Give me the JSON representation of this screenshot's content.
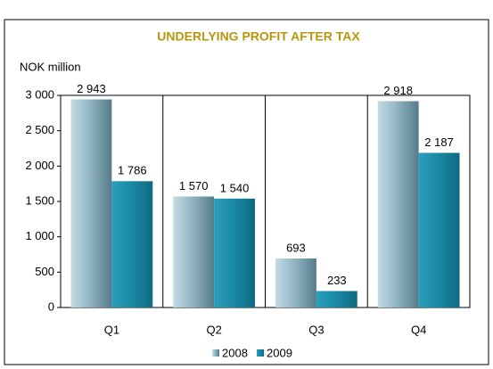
{
  "chart_data": {
    "type": "bar",
    "title": "UNDERLYING PROFIT AFTER TAX",
    "y_label": "NOK million",
    "categories": [
      "Q1",
      "Q2",
      "Q3",
      "Q4"
    ],
    "series": [
      {
        "name": "2008",
        "color": "#7fa3b1",
        "values": [
          2943,
          1570,
          693,
          2918
        ],
        "value_labels": [
          "2 943",
          "1 570",
          "693",
          "2 918"
        ]
      },
      {
        "name": "2009",
        "color": "#1a87a3",
        "values": [
          1786,
          1540,
          233,
          2187
        ],
        "value_labels": [
          "1 786",
          "1 540",
          "233",
          "2 187"
        ]
      }
    ],
    "ylim": [
      0,
      3000
    ],
    "yticks": [
      0,
      500,
      {
        "value": 1000,
        "label": "1 000"
      },
      {
        "value": 1500,
        "label": "1 500"
      },
      {
        "value": 2000,
        "label": "2 000"
      },
      {
        "value": 2500,
        "label": "2 500"
      },
      {
        "value": 3000,
        "label": "3 000"
      }
    ],
    "legend": "bottom"
  }
}
